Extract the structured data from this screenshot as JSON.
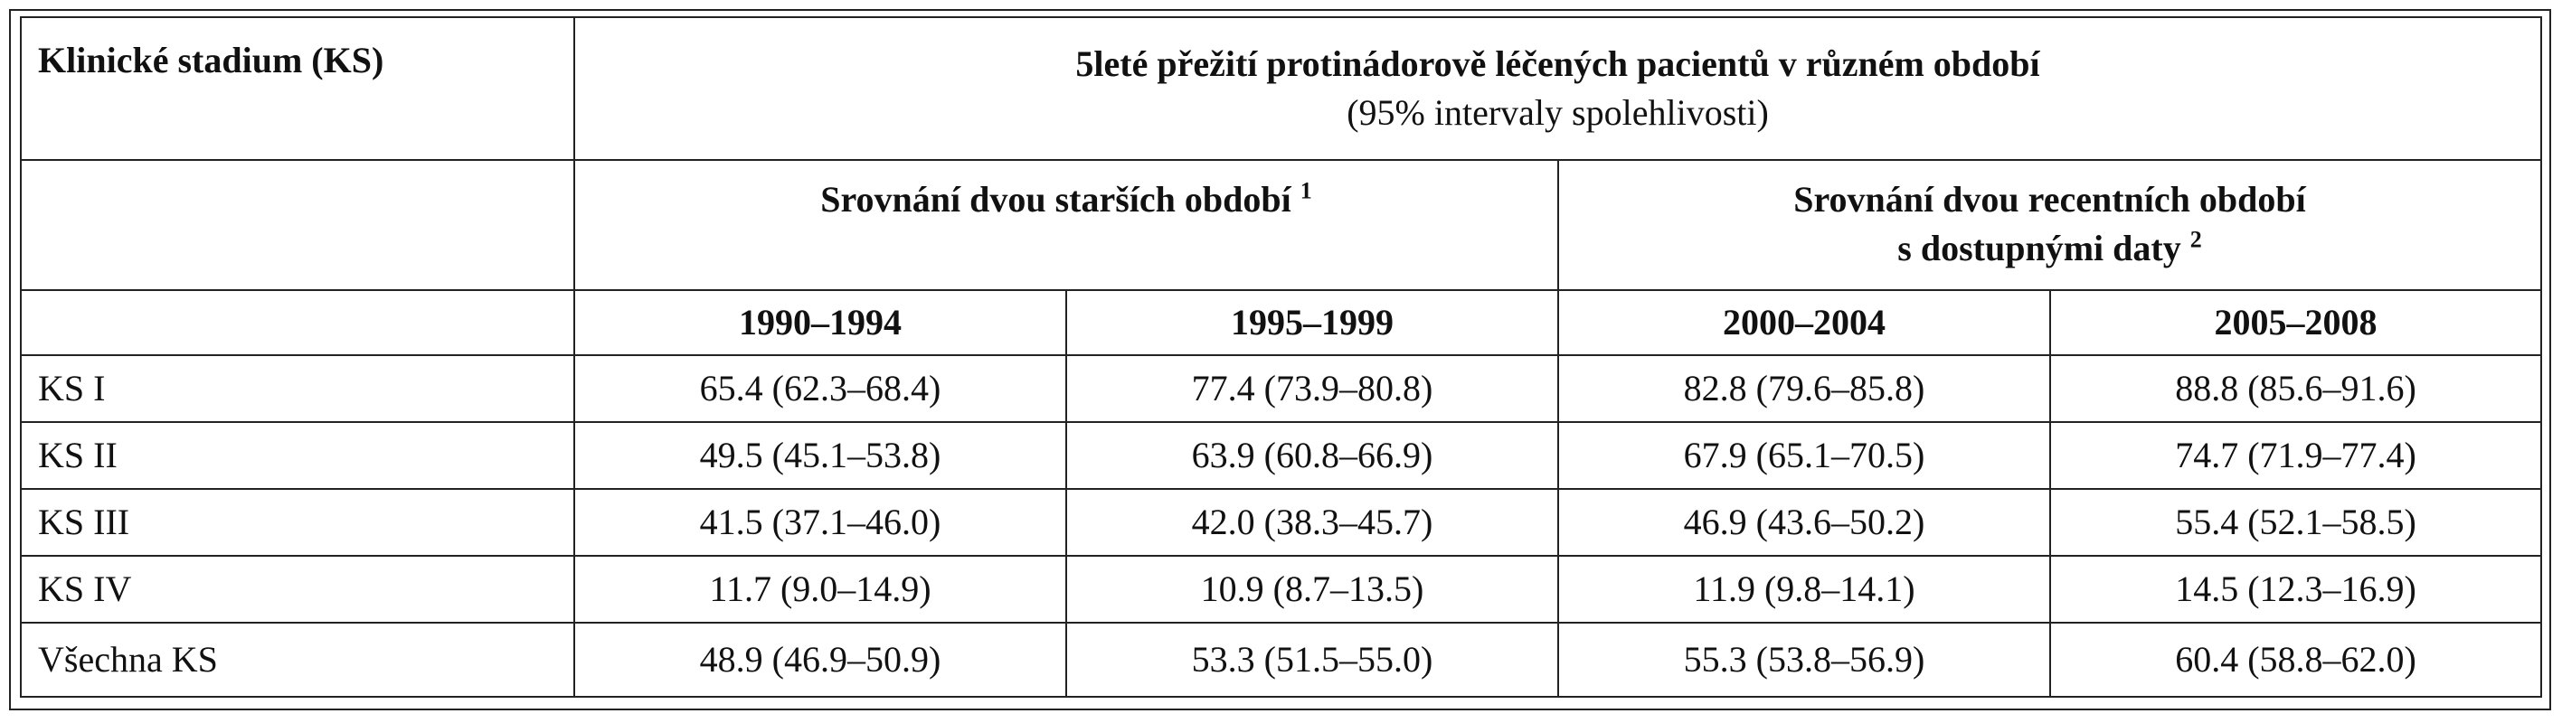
{
  "table": {
    "stage_header": "Klinické stadium (KS)",
    "main_header_line1": "5leté přežití protinádorově léčených pacientů v různém období",
    "main_header_line2": "(95% intervaly spolehlivosti)",
    "group_older": {
      "label": "Srovnání dvou starších období",
      "note": "1"
    },
    "group_recent": {
      "label_line1": "Srovnání dvou recentních období",
      "label_line2": "s dostupnými daty",
      "note": "2"
    },
    "periods": [
      "1990–1994",
      "1995–1999",
      "2000–2004",
      "2005–2008"
    ],
    "rows": [
      {
        "stage": "KS I",
        "values": [
          "65.4 (62.3–68.4)",
          "77.4 (73.9–80.8)",
          "82.8 (79.6–85.8)",
          "88.8 (85.6–91.6)"
        ]
      },
      {
        "stage": "KS II",
        "values": [
          "49.5 (45.1–53.8)",
          "63.9 (60.8–66.9)",
          "67.9 (65.1–70.5)",
          "74.7 (71.9–77.4)"
        ]
      },
      {
        "stage": "KS III",
        "values": [
          "41.5 (37.1–46.0)",
          "42.0 (38.3–45.7)",
          "46.9 (43.6–50.2)",
          "55.4 (52.1–58.5)"
        ]
      },
      {
        "stage": "KS IV",
        "values": [
          "11.7 (9.0–14.9)",
          "10.9 (8.7–13.5)",
          "11.9 (9.8–14.1)",
          "14.5 (12.3–16.9)"
        ]
      },
      {
        "stage": "Všechna KS",
        "values": [
          "48.9 (46.9–50.9)",
          "53.3 (51.5–55.0)",
          "55.3 (53.8–56.9)",
          "60.4 (58.8–62.0)"
        ]
      }
    ]
  }
}
